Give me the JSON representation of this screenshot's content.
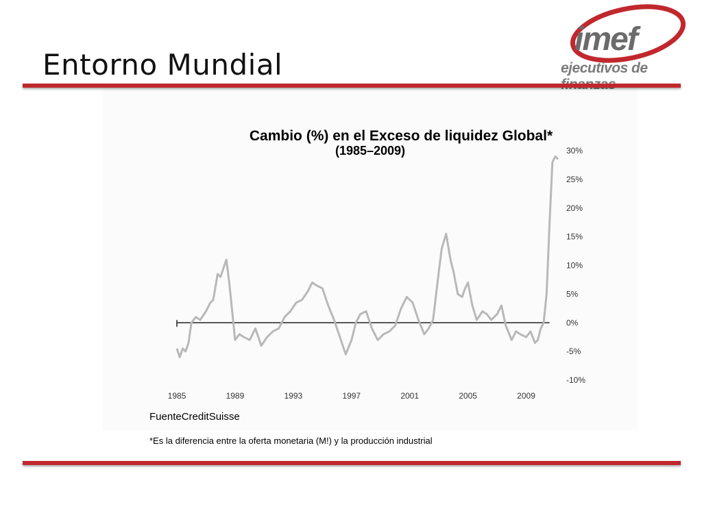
{
  "slide": {
    "title": "Entorno Mundial",
    "logo_text": "imef",
    "logo_subtext": "ejecutivos de finanzas",
    "source": "FuenteCreditSuisse",
    "footnote": "*Es la diferencia entre la oferta monetaria (M!) y  la producción industrial"
  },
  "colors": {
    "accent": "#c0282d",
    "line": "#b8b8b8",
    "zero_line": "#222222"
  },
  "chart_data": {
    "type": "line",
    "title": "Cambio (%) en el Exceso de liquidez Global*",
    "subtitle": "(1985–2009)",
    "x_ticks": [
      "1985",
      "1989",
      "1993",
      "1997",
      "2001",
      "2005",
      "2009"
    ],
    "y_ticks": [
      "30%",
      "25%",
      "20%",
      "15%",
      "10%",
      "5%",
      "0%",
      "-5%",
      "-10%"
    ],
    "xlim": [
      1985,
      2011
    ],
    "ylim": [
      -10,
      30
    ],
    "grid": false,
    "series": [
      {
        "x": [
          1985.0,
          1985.2,
          1985.4,
          1985.6,
          1985.8,
          1986.0,
          1986.3,
          1986.6,
          1987.0,
          1987.3,
          1987.5,
          1987.8,
          1988.0,
          1988.2,
          1988.4,
          1988.6,
          1988.8,
          1989.0,
          1989.3,
          1989.6,
          1990.0,
          1990.4,
          1990.8,
          1991.2,
          1991.6,
          1992.0,
          1992.4,
          1992.8,
          1993.2,
          1993.6,
          1994.0,
          1994.3,
          1994.6,
          1995.0,
          1995.4,
          1995.8,
          1996.2,
          1996.6,
          1997.0,
          1997.3,
          1997.6,
          1998.0,
          1998.4,
          1998.8,
          1999.2,
          1999.6,
          2000.0,
          2000.4,
          2000.8,
          2001.2,
          2001.6,
          2002.0,
          2002.3,
          2002.6,
          2003.0,
          2003.2,
          2003.5,
          2003.8,
          2004.0,
          2004.3,
          2004.6,
          2004.8,
          2005.0,
          2005.3,
          2005.6,
          2006.0,
          2006.3,
          2006.6,
          2007.0,
          2007.3,
          2007.6,
          2008.0,
          2008.3,
          2008.6,
          2009.0,
          2009.3,
          2009.6,
          2009.8,
          2010.0,
          2010.2,
          2010.4,
          2010.6,
          2010.8,
          2011.0,
          2011.2
        ],
        "y": [
          -4.5,
          -6,
          -4.5,
          -5,
          -3.5,
          0,
          1,
          0.5,
          2,
          3.5,
          4,
          8.5,
          8,
          9.5,
          11,
          7,
          2,
          -3,
          -2,
          -2.5,
          -3,
          -1,
          -4,
          -2.5,
          -1.5,
          -1,
          1,
          2,
          3.5,
          4,
          5.5,
          7,
          6.5,
          6,
          3,
          0.5,
          -2.5,
          -5.5,
          -3,
          0,
          1.5,
          2,
          -1,
          -3,
          -2,
          -1.5,
          -0.5,
          2.5,
          4.5,
          3.5,
          0.5,
          -2,
          -1,
          0.5,
          9,
          13,
          15.5,
          11,
          9,
          5,
          4.5,
          6,
          7,
          3,
          0.5,
          2,
          1.5,
          0.5,
          1.5,
          3,
          -0.5,
          -3,
          -1.5,
          -2,
          -2.5,
          -1.5,
          -3.5,
          -3,
          -1,
          0,
          5,
          17,
          28,
          29,
          28.5
        ]
      }
    ]
  }
}
